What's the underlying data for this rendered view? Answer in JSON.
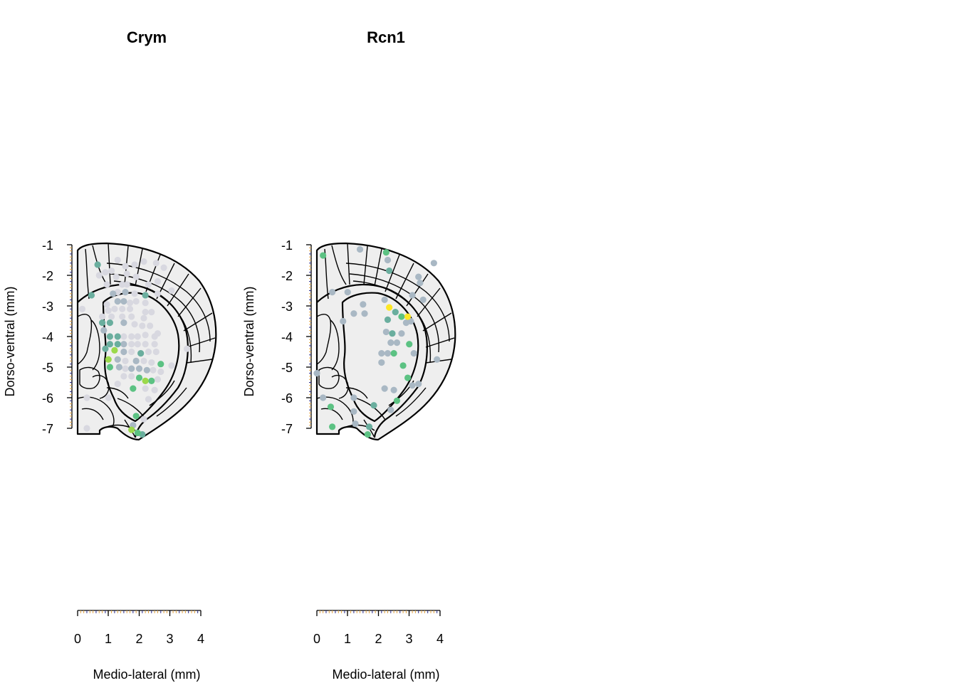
{
  "panels": [
    {
      "id": "crym",
      "title": "Crym",
      "xlabel": "Medio-lateral (mm)",
      "ylabel": "Dorso-ventral (mm)",
      "x_ticks": [
        "0",
        "1",
        "2",
        "3",
        "4"
      ],
      "y_ticks": [
        "-1",
        "-2",
        "-3",
        "-4",
        "-5",
        "-6",
        "-7"
      ]
    },
    {
      "id": "rcn1",
      "title": "Rcn1",
      "xlabel": "Medio-lateral (mm)",
      "ylabel": "Dorso-ventral (mm)",
      "x_ticks": [
        "0",
        "1",
        "2",
        "3",
        "4"
      ],
      "y_ticks": [
        "-1",
        "-2",
        "-3",
        "-4",
        "-5",
        "-6",
        "-7"
      ]
    }
  ],
  "chart_data": [
    {
      "type": "scatter",
      "title": "Crym",
      "xlabel": "Medio-lateral (mm)",
      "ylabel": "Dorso-ventral (mm)",
      "xlim": [
        0,
        4
      ],
      "ylim": [
        -7,
        -1
      ],
      "x_ticks": [
        0,
        1,
        2,
        3,
        4
      ],
      "y_ticks": [
        -1,
        -2,
        -3,
        -4,
        -5,
        -6,
        -7
      ],
      "colors": {
        "low": "#d8d8e0",
        "mid-low": "#a9b8c4",
        "mid": "#6aae9e",
        "mid-high": "#5cc283",
        "high": "#9bd94b",
        "max": "#fde725"
      },
      "points": [
        {
          "x": 0.65,
          "y": -1.65,
          "level": "mid"
        },
        {
          "x": 0.9,
          "y": -1.9,
          "level": "low"
        },
        {
          "x": 1.1,
          "y": -1.85,
          "level": "low"
        },
        {
          "x": 1.3,
          "y": -1.5,
          "level": "low"
        },
        {
          "x": 1.55,
          "y": -1.7,
          "level": "low"
        },
        {
          "x": 1.6,
          "y": -1.95,
          "level": "low"
        },
        {
          "x": 1.85,
          "y": -1.65,
          "level": "low"
        },
        {
          "x": 2.15,
          "y": -1.55,
          "level": "low"
        },
        {
          "x": 2.55,
          "y": -1.6,
          "level": "low"
        },
        {
          "x": 2.8,
          "y": -1.75,
          "level": "low"
        },
        {
          "x": 0.7,
          "y": -2.0,
          "level": "low"
        },
        {
          "x": 0.95,
          "y": -2.3,
          "level": "low"
        },
        {
          "x": 1.25,
          "y": -2.05,
          "level": "low"
        },
        {
          "x": 1.45,
          "y": -2.3,
          "level": "low"
        },
        {
          "x": 1.6,
          "y": -2.3,
          "level": "low"
        },
        {
          "x": 1.9,
          "y": -2.05,
          "level": "low"
        },
        {
          "x": 2.3,
          "y": -2.3,
          "level": "low"
        },
        {
          "x": 2.6,
          "y": -2.2,
          "level": "low"
        },
        {
          "x": 3.05,
          "y": -2.5,
          "level": "low"
        },
        {
          "x": 0.45,
          "y": -2.65,
          "level": "mid"
        },
        {
          "x": 1.15,
          "y": -2.6,
          "level": "mid-low"
        },
        {
          "x": 1.3,
          "y": -2.55,
          "level": "low"
        },
        {
          "x": 1.55,
          "y": -2.55,
          "level": "mid-low"
        },
        {
          "x": 1.85,
          "y": -2.6,
          "level": "low"
        },
        {
          "x": 2.2,
          "y": -2.65,
          "level": "mid"
        },
        {
          "x": 2.6,
          "y": -2.6,
          "level": "low"
        },
        {
          "x": 0.15,
          "y": -3.1,
          "level": "low"
        },
        {
          "x": 0.95,
          "y": -2.95,
          "level": "low"
        },
        {
          "x": 1.3,
          "y": -2.85,
          "level": "mid-low"
        },
        {
          "x": 1.5,
          "y": -2.85,
          "level": "mid-low"
        },
        {
          "x": 1.7,
          "y": -2.9,
          "level": "low"
        },
        {
          "x": 1.9,
          "y": -2.85,
          "level": "low"
        },
        {
          "x": 2.2,
          "y": -2.9,
          "level": "low"
        },
        {
          "x": 1.0,
          "y": -3.15,
          "level": "low"
        },
        {
          "x": 1.2,
          "y": -3.1,
          "level": "low"
        },
        {
          "x": 1.45,
          "y": -3.1,
          "level": "low"
        },
        {
          "x": 1.7,
          "y": -3.1,
          "level": "low"
        },
        {
          "x": 2.2,
          "y": -3.2,
          "level": "low"
        },
        {
          "x": 2.4,
          "y": -3.2,
          "level": "low"
        },
        {
          "x": 0.8,
          "y": -3.35,
          "level": "low"
        },
        {
          "x": 1.1,
          "y": -3.35,
          "level": "low"
        },
        {
          "x": 1.45,
          "y": -3.35,
          "level": "low"
        },
        {
          "x": 1.75,
          "y": -3.35,
          "level": "low"
        },
        {
          "x": 2.15,
          "y": -3.4,
          "level": "low"
        },
        {
          "x": 0.8,
          "y": -3.55,
          "level": "mid"
        },
        {
          "x": 1.05,
          "y": -3.55,
          "level": "mid"
        },
        {
          "x": 1.5,
          "y": -3.55,
          "level": "mid-low"
        },
        {
          "x": 1.85,
          "y": -3.6,
          "level": "low"
        },
        {
          "x": 2.1,
          "y": -3.65,
          "level": "low"
        },
        {
          "x": 2.35,
          "y": -3.65,
          "level": "low"
        },
        {
          "x": 0.85,
          "y": -3.8,
          "level": "mid-low"
        },
        {
          "x": 2.6,
          "y": -3.9,
          "level": "low"
        },
        {
          "x": 1.05,
          "y": -4.0,
          "level": "mid"
        },
        {
          "x": 1.3,
          "y": -4.0,
          "level": "mid"
        },
        {
          "x": 1.5,
          "y": -4.0,
          "level": "low"
        },
        {
          "x": 1.75,
          "y": -4.0,
          "level": "low"
        },
        {
          "x": 1.95,
          "y": -4.0,
          "level": "low"
        },
        {
          "x": 2.2,
          "y": -3.95,
          "level": "low"
        },
        {
          "x": 2.5,
          "y": -4.0,
          "level": "low"
        },
        {
          "x": 1.05,
          "y": -4.25,
          "level": "mid"
        },
        {
          "x": 1.3,
          "y": -4.25,
          "level": "mid"
        },
        {
          "x": 1.5,
          "y": -4.25,
          "level": "mid-low"
        },
        {
          "x": 1.75,
          "y": -4.25,
          "level": "low"
        },
        {
          "x": 1.95,
          "y": -4.25,
          "level": "low"
        },
        {
          "x": 2.2,
          "y": -4.25,
          "level": "low"
        },
        {
          "x": 2.5,
          "y": -4.25,
          "level": "low"
        },
        {
          "x": 0.9,
          "y": -4.4,
          "level": "mid"
        },
        {
          "x": 1.2,
          "y": -4.45,
          "level": "high"
        },
        {
          "x": 1.5,
          "y": -4.5,
          "level": "mid-low"
        },
        {
          "x": 1.75,
          "y": -4.5,
          "level": "low"
        },
        {
          "x": 2.05,
          "y": -4.55,
          "level": "mid"
        },
        {
          "x": 2.3,
          "y": -4.5,
          "level": "low"
        },
        {
          "x": 2.55,
          "y": -4.5,
          "level": "low"
        },
        {
          "x": 3.55,
          "y": -4.4,
          "level": "low"
        },
        {
          "x": 1.0,
          "y": -4.75,
          "level": "high"
        },
        {
          "x": 1.3,
          "y": -4.75,
          "level": "mid-low"
        },
        {
          "x": 1.55,
          "y": -4.8,
          "level": "low"
        },
        {
          "x": 1.9,
          "y": -4.8,
          "level": "mid-low"
        },
        {
          "x": 2.15,
          "y": -4.8,
          "level": "low"
        },
        {
          "x": 2.4,
          "y": -4.85,
          "level": "low"
        },
        {
          "x": 2.7,
          "y": -4.9,
          "level": "mid-high"
        },
        {
          "x": 3.05,
          "y": -4.95,
          "level": "low"
        },
        {
          "x": 1.05,
          "y": -5.0,
          "level": "mid-high"
        },
        {
          "x": 1.35,
          "y": -5.0,
          "level": "mid-low"
        },
        {
          "x": 1.55,
          "y": -5.05,
          "level": "low"
        },
        {
          "x": 1.75,
          "y": -5.05,
          "level": "mid-low"
        },
        {
          "x": 2.0,
          "y": -5.05,
          "level": "mid-low"
        },
        {
          "x": 2.25,
          "y": -5.1,
          "level": "mid-low"
        },
        {
          "x": 2.45,
          "y": -5.1,
          "level": "low"
        },
        {
          "x": 2.7,
          "y": -5.15,
          "level": "low"
        },
        {
          "x": 1.5,
          "y": -5.3,
          "level": "low"
        },
        {
          "x": 1.75,
          "y": -5.3,
          "level": "low"
        },
        {
          "x": 2.0,
          "y": -5.35,
          "level": "mid-high"
        },
        {
          "x": 2.2,
          "y": -5.45,
          "level": "high"
        },
        {
          "x": 2.4,
          "y": -5.45,
          "level": "mid-high"
        },
        {
          "x": 2.6,
          "y": -5.4,
          "level": "low"
        },
        {
          "x": 1.3,
          "y": -5.55,
          "level": "low"
        },
        {
          "x": 1.8,
          "y": -5.7,
          "level": "mid-high"
        },
        {
          "x": 2.2,
          "y": -5.7,
          "level": "low"
        },
        {
          "x": 2.5,
          "y": -5.75,
          "level": "low"
        },
        {
          "x": 0.3,
          "y": -6.0,
          "level": "low"
        },
        {
          "x": 1.0,
          "y": -6.0,
          "level": "low"
        },
        {
          "x": 2.3,
          "y": -6.05,
          "level": "low"
        },
        {
          "x": 1.9,
          "y": -6.6,
          "level": "mid-high"
        },
        {
          "x": 2.15,
          "y": -6.7,
          "level": "low"
        },
        {
          "x": 1.8,
          "y": -6.9,
          "level": "mid-low"
        },
        {
          "x": 1.75,
          "y": -7.05,
          "level": "high"
        },
        {
          "x": 1.95,
          "y": -7.15,
          "level": "mid-high"
        },
        {
          "x": 2.1,
          "y": -7.2,
          "level": "mid"
        },
        {
          "x": 0.3,
          "y": -7.0,
          "level": "low"
        }
      ]
    },
    {
      "type": "scatter",
      "title": "Rcn1",
      "xlabel": "Medio-lateral (mm)",
      "ylabel": "Dorso-ventral (mm)",
      "xlim": [
        0,
        4
      ],
      "ylim": [
        -7,
        -1
      ],
      "x_ticks": [
        0,
        1,
        2,
        3,
        4
      ],
      "y_ticks": [
        -1,
        -2,
        -3,
        -4,
        -5,
        -6,
        -7
      ],
      "colors": {
        "low": "#d8d8e0",
        "mid-low": "#a9b8c4",
        "mid": "#6aae9e",
        "mid-high": "#5cc283",
        "high": "#9bd94b",
        "max": "#fde725"
      },
      "points": [
        {
          "x": 0.2,
          "y": -1.35,
          "level": "mid-high"
        },
        {
          "x": 1.4,
          "y": -1.15,
          "level": "mid-low"
        },
        {
          "x": 2.25,
          "y": -1.25,
          "level": "mid-high"
        },
        {
          "x": 2.3,
          "y": -1.5,
          "level": "mid-low"
        },
        {
          "x": 3.8,
          "y": -1.6,
          "level": "mid-low"
        },
        {
          "x": 2.35,
          "y": -1.85,
          "level": "mid"
        },
        {
          "x": 3.3,
          "y": -2.05,
          "level": "mid-low"
        },
        {
          "x": 3.35,
          "y": -2.25,
          "level": "mid-low"
        },
        {
          "x": 0.5,
          "y": -2.55,
          "level": "mid-low"
        },
        {
          "x": 1.0,
          "y": -2.55,
          "level": "mid-low"
        },
        {
          "x": 2.2,
          "y": -2.8,
          "level": "mid-low"
        },
        {
          "x": 3.1,
          "y": -2.65,
          "level": "mid-low"
        },
        {
          "x": 3.45,
          "y": -2.8,
          "level": "mid-low"
        },
        {
          "x": 1.5,
          "y": -2.95,
          "level": "mid-low"
        },
        {
          "x": 2.35,
          "y": -3.05,
          "level": "max"
        },
        {
          "x": 2.55,
          "y": -3.2,
          "level": "mid"
        },
        {
          "x": 2.75,
          "y": -3.35,
          "level": "mid-high"
        },
        {
          "x": 2.95,
          "y": -3.35,
          "level": "max"
        },
        {
          "x": 1.2,
          "y": -3.25,
          "level": "mid-low"
        },
        {
          "x": 1.55,
          "y": -3.25,
          "level": "mid-low"
        },
        {
          "x": 0.85,
          "y": -3.5,
          "level": "mid-low"
        },
        {
          "x": 2.3,
          "y": -3.45,
          "level": "mid"
        },
        {
          "x": 2.9,
          "y": -3.55,
          "level": "mid-low"
        },
        {
          "x": 3.05,
          "y": -3.5,
          "level": "mid-low"
        },
        {
          "x": 2.25,
          "y": -3.85,
          "level": "mid-low"
        },
        {
          "x": 2.45,
          "y": -3.9,
          "level": "mid"
        },
        {
          "x": 2.75,
          "y": -3.9,
          "level": "mid-low"
        },
        {
          "x": 2.4,
          "y": -4.2,
          "level": "mid-low"
        },
        {
          "x": 2.6,
          "y": -4.2,
          "level": "mid-low"
        },
        {
          "x": 3.0,
          "y": -4.25,
          "level": "mid-high"
        },
        {
          "x": 2.1,
          "y": -4.55,
          "level": "mid-low"
        },
        {
          "x": 2.3,
          "y": -4.55,
          "level": "mid-low"
        },
        {
          "x": 2.5,
          "y": -4.55,
          "level": "mid-high"
        },
        {
          "x": 3.15,
          "y": -4.55,
          "level": "mid-low"
        },
        {
          "x": 2.1,
          "y": -4.85,
          "level": "mid-low"
        },
        {
          "x": 2.8,
          "y": -4.95,
          "level": "mid-high"
        },
        {
          "x": 3.9,
          "y": -4.75,
          "level": "mid-low"
        },
        {
          "x": 0.0,
          "y": -5.2,
          "level": "mid-low"
        },
        {
          "x": 2.95,
          "y": -5.35,
          "level": "mid-high"
        },
        {
          "x": 2.2,
          "y": -5.7,
          "level": "mid-low"
        },
        {
          "x": 2.5,
          "y": -5.75,
          "level": "mid-low"
        },
        {
          "x": 3.3,
          "y": -5.55,
          "level": "mid-low"
        },
        {
          "x": 3.1,
          "y": -5.6,
          "level": "mid-low"
        },
        {
          "x": 0.2,
          "y": -6.0,
          "level": "mid-low"
        },
        {
          "x": 1.2,
          "y": -6.0,
          "level": "mid-low"
        },
        {
          "x": 2.6,
          "y": -6.1,
          "level": "mid-high"
        },
        {
          "x": 0.45,
          "y": -6.3,
          "level": "mid-high"
        },
        {
          "x": 1.85,
          "y": -6.25,
          "level": "mid"
        },
        {
          "x": 1.2,
          "y": -6.45,
          "level": "mid-low"
        },
        {
          "x": 2.4,
          "y": -6.4,
          "level": "mid-low"
        },
        {
          "x": 1.25,
          "y": -6.85,
          "level": "mid-low"
        },
        {
          "x": 0.5,
          "y": -6.95,
          "level": "mid-high"
        },
        {
          "x": 1.7,
          "y": -6.95,
          "level": "mid"
        },
        {
          "x": 1.65,
          "y": -7.2,
          "level": "mid-high"
        }
      ]
    }
  ]
}
